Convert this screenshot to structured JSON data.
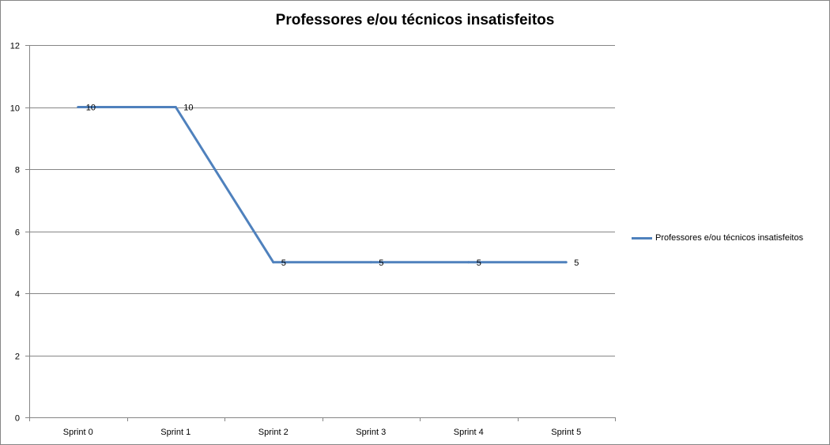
{
  "chart_data": {
    "type": "line",
    "title": "Professores e/ou técnicos insatisfeitos",
    "categories": [
      "Sprint 0",
      "Sprint 1",
      "Sprint 2",
      "Sprint 3",
      "Sprint 4",
      "Sprint 5"
    ],
    "series": [
      {
        "name": "Professores e/ou técnicos insatisfeitos",
        "values": [
          10,
          10,
          5,
          5,
          5,
          5
        ],
        "data_labels": [
          "10",
          "10",
          "5",
          "5",
          "5",
          "5"
        ],
        "color": "#4F81BD"
      }
    ],
    "yticks": [
      "0",
      "2",
      "4",
      "6",
      "8",
      "10",
      "12"
    ],
    "ylim": [
      0,
      12
    ],
    "ystep": 2,
    "xlabel": "",
    "ylabel": "",
    "grid": true,
    "legend_position": "right",
    "colors": {
      "grid": "#868686",
      "axis": "#868686"
    }
  }
}
